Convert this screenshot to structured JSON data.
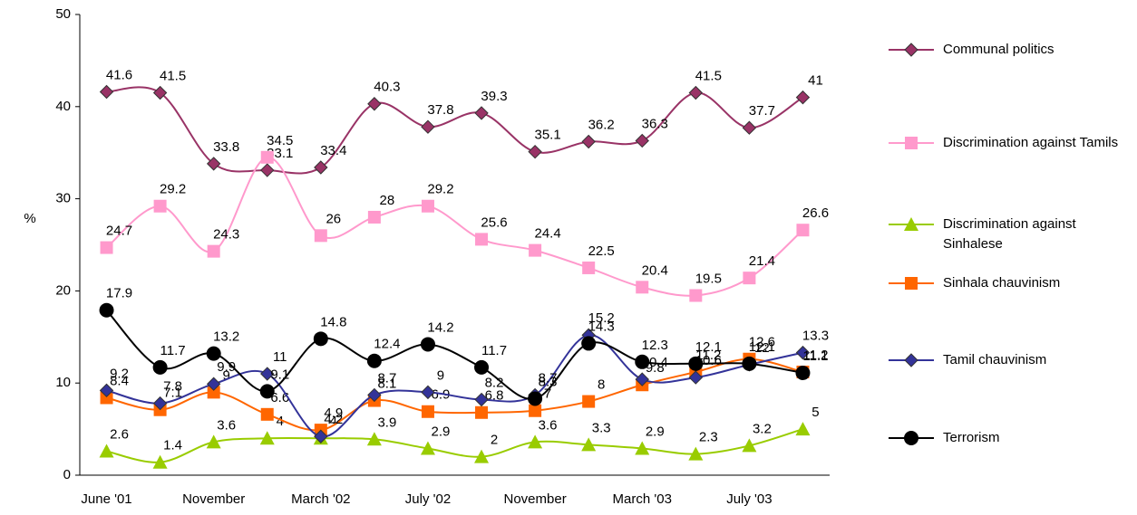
{
  "chart_data": {
    "type": "line",
    "categories": [
      "June '01",
      null,
      "November",
      null,
      "March '02",
      null,
      "July '02",
      null,
      "November",
      null,
      "March '03",
      null,
      "July '03",
      null
    ],
    "ylabel": "%",
    "ylim": [
      0,
      50
    ],
    "yticks": [
      0,
      10,
      20,
      30,
      40,
      50
    ],
    "smooth": true,
    "legend": "right",
    "series": [
      {
        "name": "Communal politics",
        "color": "#993366",
        "marker": "diamond",
        "values": [
          41.6,
          41.5,
          33.8,
          33.1,
          33.4,
          40.3,
          37.8,
          39.3,
          35.1,
          36.2,
          36.3,
          41.5,
          37.7,
          41
        ]
      },
      {
        "name": "Discrimination against Tamils",
        "color": "#ff99cc",
        "marker": "square",
        "values": [
          24.7,
          29.2,
          24.3,
          34.5,
          26,
          28,
          29.2,
          25.6,
          24.4,
          22.5,
          20.4,
          19.5,
          21.4,
          26.6
        ]
      },
      {
        "name": "Discrimination against Sinhalese",
        "color": "#99cc00",
        "marker": "triangle",
        "values": [
          2.6,
          1.4,
          3.6,
          4,
          4,
          3.9,
          2.9,
          2,
          3.6,
          3.3,
          2.9,
          2.3,
          3.2,
          5
        ]
      },
      {
        "name": "Sinhala chauvinism",
        "color": "#ff6600",
        "marker": "square",
        "values": [
          8.4,
          7.1,
          9,
          6.6,
          4.9,
          8.1,
          6.9,
          6.8,
          7,
          8,
          9.8,
          11.2,
          12.6,
          11.2
        ]
      },
      {
        "name": "Tamil chauvinism",
        "color": "#333399",
        "marker": "diamond",
        "values": [
          9.2,
          7.8,
          9.9,
          11,
          4.2,
          8.7,
          9,
          8.2,
          8.7,
          15.2,
          10.4,
          10.6,
          12,
          13.3
        ]
      },
      {
        "name": "Terrorism",
        "color": "#000000",
        "marker": "circle",
        "values": [
          17.9,
          11.7,
          13.2,
          9.1,
          14.8,
          12.4,
          14.2,
          11.7,
          8.3,
          14.3,
          12.3,
          12.1,
          12.1,
          11.1
        ]
      }
    ]
  }
}
